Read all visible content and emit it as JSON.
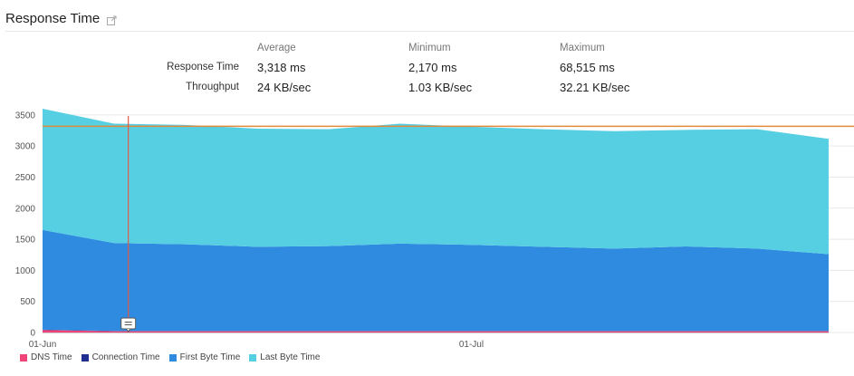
{
  "header": {
    "title": "Response Time",
    "icon": "external-link-icon"
  },
  "stats": {
    "columns": [
      "Average",
      "Minimum",
      "Maximum"
    ],
    "rows": [
      {
        "label": "Response Time",
        "values": [
          "3,318 ms",
          "2,170 ms",
          "68,515 ms"
        ]
      },
      {
        "label": "Throughput",
        "values": [
          "24 KB/sec",
          "1.03 KB/sec",
          "32.21 KB/sec"
        ]
      }
    ]
  },
  "chart_data": {
    "type": "area",
    "stacked": true,
    "x": [
      "2024-06-01",
      "2024-06-06",
      "2024-06-11",
      "2024-06-16",
      "2024-06-21",
      "2024-06-26",
      "2024-07-01",
      "2024-07-06",
      "2024-07-11",
      "2024-07-16",
      "2024-07-21",
      "2024-07-26"
    ],
    "x_ticks": [
      "01-Jun",
      "01-Jul"
    ],
    "ylim": [
      0,
      3600
    ],
    "y_ticks": [
      0,
      500,
      1000,
      1500,
      2000,
      2500,
      3000,
      3500
    ],
    "average_line": 3318,
    "grid": true,
    "legend_position": "bottom-left",
    "series": [
      {
        "name": "DNS Time",
        "color": "#f0437a",
        "values": [
          40,
          20,
          20,
          20,
          20,
          20,
          20,
          20,
          20,
          20,
          20,
          20
        ]
      },
      {
        "name": "Connection Time",
        "color": "#1f2f8f",
        "values": [
          5,
          5,
          5,
          5,
          5,
          5,
          5,
          5,
          5,
          5,
          5,
          5
        ]
      },
      {
        "name": "First Byte Time",
        "color": "#2f8be0",
        "values": [
          1605,
          1415,
          1395,
          1355,
          1365,
          1405,
          1385,
          1355,
          1325,
          1360,
          1325,
          1235
        ]
      },
      {
        "name": "Last Byte Time",
        "color": "#56cfe3",
        "values": [
          1950,
          1920,
          1920,
          1900,
          1880,
          1930,
          1900,
          1890,
          1890,
          1875,
          1920,
          1855
        ]
      }
    ],
    "marker": {
      "x": "2024-06-07"
    }
  }
}
